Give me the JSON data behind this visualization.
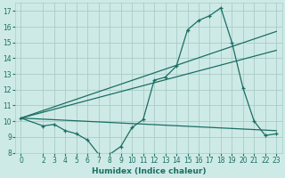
{
  "xlabel": "Humidex (Indice chaleur)",
  "bg_color": "#ceeae6",
  "grid_color": "#aaccc8",
  "line_color": "#1a6e64",
  "xlim": [
    -0.5,
    23.5
  ],
  "ylim": [
    8,
    17.5
  ],
  "yticks": [
    8,
    9,
    10,
    11,
    12,
    13,
    14,
    15,
    16,
    17
  ],
  "xticks": [
    0,
    2,
    3,
    4,
    5,
    6,
    7,
    8,
    9,
    10,
    11,
    12,
    13,
    14,
    15,
    16,
    17,
    18,
    19,
    20,
    21,
    22,
    23
  ],
  "series1_x": [
    0,
    2,
    3,
    4,
    5,
    6,
    7,
    8,
    9,
    10,
    11,
    12,
    13,
    14,
    15,
    16,
    17,
    18,
    19,
    20,
    21,
    22,
    23
  ],
  "series1_y": [
    10.2,
    9.7,
    9.8,
    9.4,
    9.2,
    8.8,
    7.9,
    7.9,
    8.4,
    9.6,
    10.1,
    12.6,
    12.8,
    13.5,
    15.8,
    16.4,
    16.7,
    17.2,
    15.0,
    12.1,
    10.0,
    9.1,
    9.2
  ],
  "trend1_x": [
    0,
    23
  ],
  "trend1_y": [
    10.2,
    15.7
  ],
  "trend2_x": [
    0,
    23
  ],
  "trend2_y": [
    10.2,
    14.5
  ],
  "trend3_x": [
    0,
    23
  ],
  "trend3_y": [
    10.2,
    9.4
  ]
}
